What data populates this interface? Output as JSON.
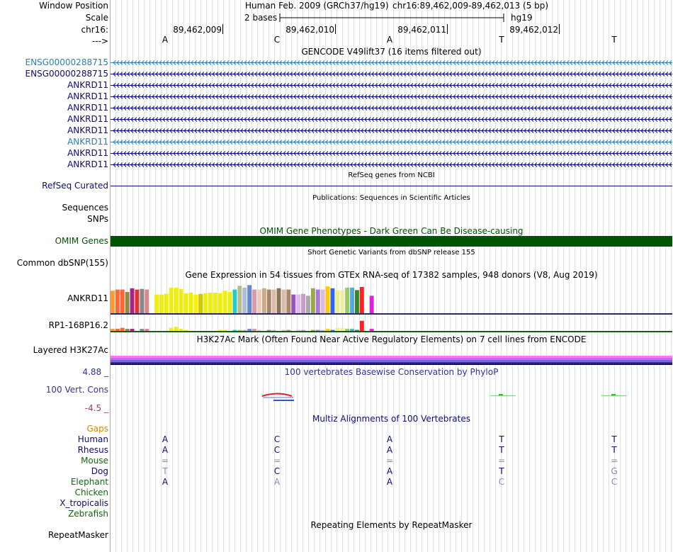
{
  "header": {
    "window_position_label": "Window Position",
    "assembly_title": "Human Feb. 2009 (GRCh37/hg19)",
    "position_text": "chr16:89,462,009-89,462,013 (5 bp)",
    "scale_label": "Scale",
    "scale_text": "2 bases",
    "scale_db": "hg19",
    "chrom_label": "chr16:",
    "strand_label": "--->",
    "ticks": [
      "89,462,009",
      "89,462,010",
      "89,462,011",
      "89,462,012"
    ],
    "bases": [
      "A",
      "C",
      "A",
      "T",
      "T"
    ]
  },
  "gencode": {
    "title": "GENCODE V49lift37 (16 items filtered out)",
    "items": [
      {
        "label": "ENSG00000288715",
        "color": "#2a7fb5"
      },
      {
        "label": "ENSG00000288715",
        "color": "#0c0c78"
      },
      {
        "label": "ANKRD11",
        "color": "#0c0c78"
      },
      {
        "label": "ANKRD11",
        "color": "#0c0c78"
      },
      {
        "label": "ANKRD11",
        "color": "#0c0c78"
      },
      {
        "label": "ANKRD11",
        "color": "#0c0c78"
      },
      {
        "label": "ANKRD11",
        "color": "#0c0c78"
      },
      {
        "label": "ANKRD11",
        "color": "#2a7fb5"
      },
      {
        "label": "ANKRD11",
        "color": "#0c0c78"
      },
      {
        "label": "ANKRD11",
        "color": "#0c0c78"
      }
    ]
  },
  "refseq": {
    "title": "RefSeq genes from NCBI",
    "label": "RefSeq Curated"
  },
  "publications": {
    "title": "Publications: Sequences in Scientific Articles",
    "label1": "Sequences",
    "label2": "SNPs"
  },
  "omim": {
    "title": "OMIM Gene Phenotypes - Dark Green Can Be Disease-causing",
    "label": "OMIM Genes",
    "color": "#005500"
  },
  "dbsnp": {
    "title": "Short Genetic Variants from dbSNP release 155",
    "label": "Common dbSNP(155)"
  },
  "gtex": {
    "title": "Gene Expression in 54 tissues from GTEx RNA-seq of 17382 samples, 948 donors (V8, Aug 2019)",
    "gene1": "ANKRD11",
    "gene2": "RP1-168P16.2",
    "colors": [
      "#ff9a33",
      "#ff6633",
      "#ff6633",
      "#8b8b44",
      "#aa2288",
      "#dd3333",
      "#888888",
      "#dd8888",
      "#ffffff",
      "#eeee11",
      "#eeee11",
      "#eeee11",
      "#eeee11",
      "#eeee11",
      "#eeee11",
      "#eeee11",
      "#eeee11",
      "#ffee00",
      "#cccc00",
      "#eeee11",
      "#eeee11",
      "#eeee11",
      "#eeee11",
      "#eeee11",
      "#eeee11",
      "#22cccc",
      "#bbbb88",
      "#aabbdd",
      "#6688cc",
      "#dd99aa",
      "#eeccbb",
      "#ccaa88",
      "#aa8866",
      "#ddbbaa",
      "#887755",
      "#ddbbaa",
      "#aa8866",
      "#9955bb",
      "#ddbbee",
      "#cc99cc",
      "#aaaaaa",
      "#99aa44",
      "#aa77dd",
      "#ddbbdd",
      "#ffcc00",
      "#3366ee",
      "#eeee88",
      "#eeeeaa",
      "#99cc66",
      "#55aadd",
      "#338822",
      "#ff2222",
      "#ffffff",
      "#dd22dd"
    ],
    "values": [
      36,
      38,
      38,
      34,
      40,
      38,
      39,
      38,
      37,
      30,
      30,
      31,
      41,
      41,
      39,
      32,
      33,
      30,
      31,
      32,
      33,
      33,
      32,
      36,
      34,
      38,
      44,
      41,
      45,
      38,
      38,
      40,
      38,
      38,
      40,
      38,
      38,
      30,
      30,
      31,
      28,
      40,
      38,
      38,
      43,
      40,
      37,
      37,
      41,
      41,
      37,
      42,
      36,
      28
    ],
    "values2": [
      2,
      2,
      3,
      2,
      2,
      0,
      2,
      2,
      0,
      0,
      0,
      0,
      3,
      4,
      2,
      1,
      0,
      0,
      0,
      0,
      0,
      0,
      1,
      1,
      0,
      1,
      1,
      1,
      2,
      2,
      1,
      0,
      1,
      1,
      0,
      1,
      1,
      0,
      1,
      1,
      0,
      1,
      1,
      1,
      2,
      1,
      3,
      3,
      2,
      2,
      1,
      10,
      0,
      2
    ]
  },
  "h3k27ac": {
    "title": "H3K27Ac Mark (Often Found Near Active Regulatory Elements) on 7 cell lines from ENCODE",
    "label": "Layered H3K27Ac"
  },
  "phylop": {
    "title": "100 vertebrates Basewise Conservation by PhyloP",
    "label": "100 Vert. Cons",
    "max": "4.88 _",
    "min": "-4.5 _"
  },
  "multiz": {
    "title": "Multiz Alignments of 100 Vertebrates",
    "gaps_label": "Gaps",
    "species": [
      {
        "name": "Human",
        "color": "#0c0c78",
        "bases": [
          "A",
          "C",
          "A",
          "T",
          "T"
        ],
        "shades": [
          "#0c0c78",
          "#0c0c78",
          "#0c0c78",
          "#0c0c78",
          "#0c0c78"
        ]
      },
      {
        "name": "Rhesus",
        "color": "#0c0c78",
        "bases": [
          "A",
          "C",
          "A",
          "T",
          "T"
        ],
        "shades": [
          "#0c0c78",
          "#0c0c78",
          "#0c0c78",
          "#0c0c78",
          "#0c0c78"
        ]
      },
      {
        "name": "Mouse",
        "color": "#116611",
        "bases": [
          "=",
          "=",
          "=",
          "=",
          "="
        ],
        "shades": [
          "#8888aa",
          "#8888aa",
          "#8888aa",
          "#8888aa",
          "#8888aa"
        ]
      },
      {
        "name": "Dog",
        "color": "#0c0c78",
        "bases": [
          "T",
          "C",
          "A",
          "T",
          "G"
        ],
        "shades": [
          "#8888bb",
          "#0c0c78",
          "#0c0c78",
          "#0c0c78",
          "#8888bb"
        ]
      },
      {
        "name": "Elephant",
        "color": "#116611",
        "bases": [
          "A",
          "A",
          "A",
          "C",
          "C"
        ],
        "shades": [
          "#0c0c78",
          "#8888bb",
          "#0c0c78",
          "#8888bb",
          "#8888bb"
        ]
      },
      {
        "name": "Chicken",
        "color": "#116611",
        "bases": [
          "",
          "",
          "",
          "",
          ""
        ],
        "shades": [
          "#0c0c78",
          "#0c0c78",
          "#0c0c78",
          "#0c0c78",
          "#0c0c78"
        ]
      },
      {
        "name": "X_tropicalis",
        "color": "#0c0c78",
        "bases": [
          "",
          "",
          "",
          "",
          ""
        ],
        "shades": [
          "#0c0c78",
          "#0c0c78",
          "#0c0c78",
          "#0c0c78",
          "#0c0c78"
        ]
      },
      {
        "name": "Zebrafish",
        "color": "#116611",
        "bases": [
          "",
          "",
          "",
          "",
          ""
        ],
        "shades": [
          "#0c0c78",
          "#0c0c78",
          "#0c0c78",
          "#0c0c78",
          "#0c0c78"
        ]
      }
    ]
  },
  "repeatmasker": {
    "title": "Repeating Elements by RepeatMasker",
    "label": "RepeatMasker"
  },
  "colors": {
    "dark_blue": "#0c0c78",
    "teal": "#2a7fb5",
    "gaps_orange": "#d08a00",
    "phylop_blue": "#333399",
    "phylop_min": "#aa4444"
  }
}
